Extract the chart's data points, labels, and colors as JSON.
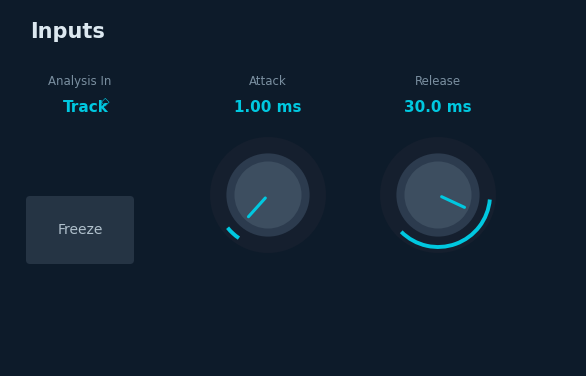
{
  "bg_color": "#0d1b2a",
  "title": "Inputs",
  "title_color": "#dce8f0",
  "title_fontsize": 15,
  "label_color": "#7a8fa0",
  "value_color": "#00c8e0",
  "white_color": "#b0c0cc",
  "freeze_bg": "#253444",
  "arc_color": "#00c8e0",
  "analysis_label": "Analysis In",
  "analysis_value": "Track",
  "attack_label": "Attack",
  "attack_value": "1.00 ms",
  "release_label": "Release",
  "release_value": "30.0 ms",
  "freeze_label": "Freeze",
  "knob_outer_dark": "#151f2e",
  "knob_mid": "#2c3b4e",
  "knob_inner": "#3d4e60",
  "fig_w": 5.86,
  "fig_h": 3.76,
  "dpi": 100
}
